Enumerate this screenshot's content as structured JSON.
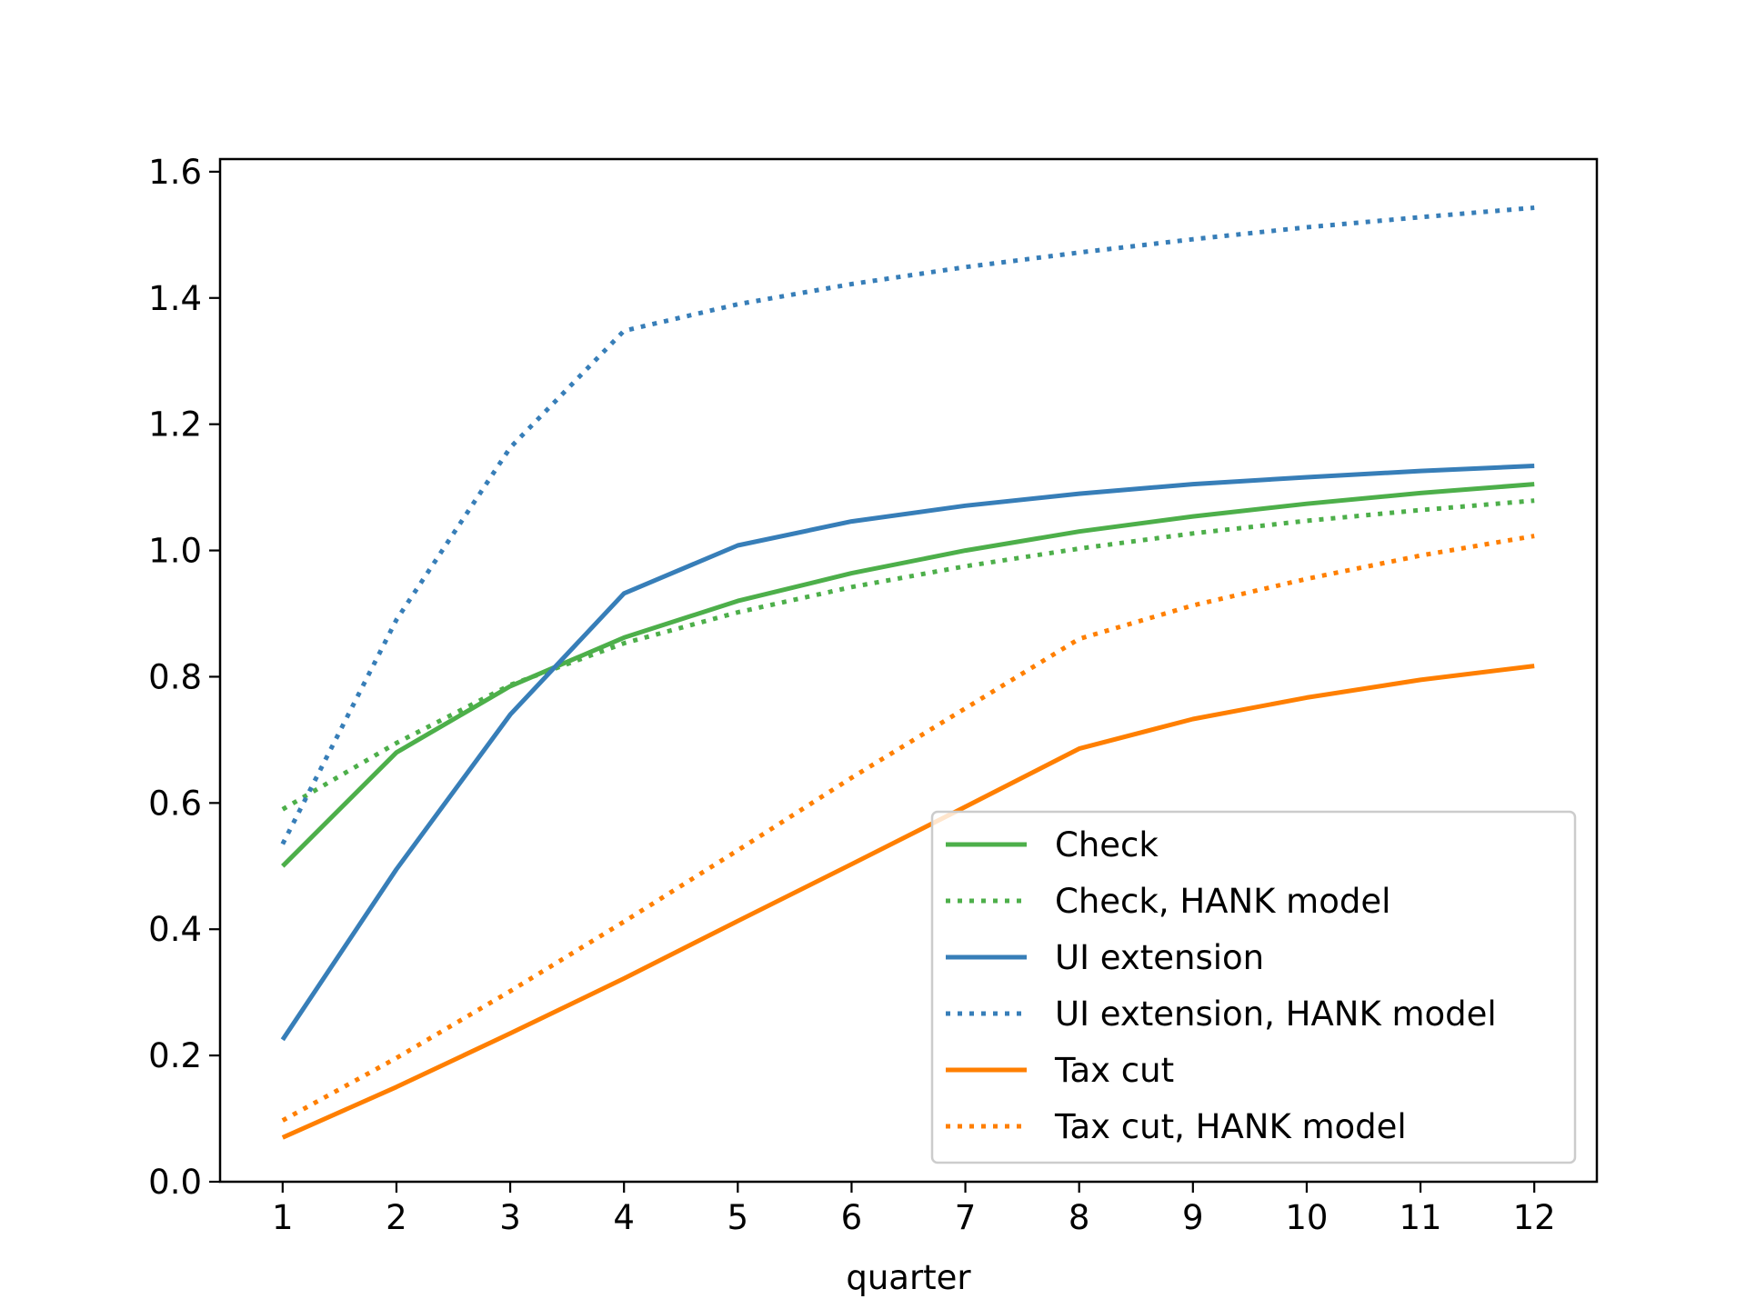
{
  "chart_data": {
    "type": "line",
    "title": "",
    "xlabel": "quarter",
    "ylabel": "",
    "xlim": [
      0.45,
      12.55
    ],
    "ylim": [
      0.0,
      1.62
    ],
    "x": [
      1,
      2,
      3,
      4,
      5,
      6,
      7,
      8,
      9,
      10,
      11,
      12
    ],
    "xticks": [
      "1",
      "2",
      "3",
      "4",
      "5",
      "6",
      "7",
      "8",
      "9",
      "10",
      "11",
      "12"
    ],
    "yticks": [
      "0.0",
      "0.2",
      "0.4",
      "0.6",
      "0.8",
      "1.0",
      "1.2",
      "1.4",
      "1.6"
    ],
    "grid": false,
    "legend_position": "lower-right",
    "series": [
      {
        "name": "Check",
        "color": "#4daf4a",
        "style": "solid",
        "values": [
          0.5,
          0.68,
          0.785,
          0.862,
          0.92,
          0.964,
          1.0,
          1.03,
          1.054,
          1.074,
          1.091,
          1.105
        ]
      },
      {
        "name": "Check, HANK model",
        "color": "#4daf4a",
        "style": "dotted",
        "values": [
          0.59,
          0.695,
          0.787,
          0.853,
          0.902,
          0.942,
          0.975,
          1.003,
          1.027,
          1.047,
          1.064,
          1.079
        ]
      },
      {
        "name": "UI extension",
        "color": "#377eb8",
        "style": "solid",
        "values": [
          0.225,
          0.495,
          0.74,
          0.932,
          1.008,
          1.046,
          1.071,
          1.09,
          1.105,
          1.116,
          1.126,
          1.134
        ]
      },
      {
        "name": "UI extension, HANK model",
        "color": "#377eb8",
        "style": "dotted",
        "values": [
          0.535,
          0.89,
          1.163,
          1.348,
          1.39,
          1.422,
          1.449,
          1.472,
          1.493,
          1.512,
          1.528,
          1.543
        ]
      },
      {
        "name": "Tax cut",
        "color": "#ff7f00",
        "style": "solid",
        "values": [
          0.07,
          0.15,
          0.235,
          0.322,
          0.413,
          0.503,
          0.594,
          0.686,
          0.733,
          0.767,
          0.795,
          0.817
        ]
      },
      {
        "name": "Tax cut, HANK model",
        "color": "#ff7f00",
        "style": "dotted",
        "values": [
          0.097,
          0.196,
          0.302,
          0.412,
          0.525,
          0.64,
          0.75,
          0.86,
          0.913,
          0.955,
          0.992,
          1.023
        ]
      }
    ]
  }
}
